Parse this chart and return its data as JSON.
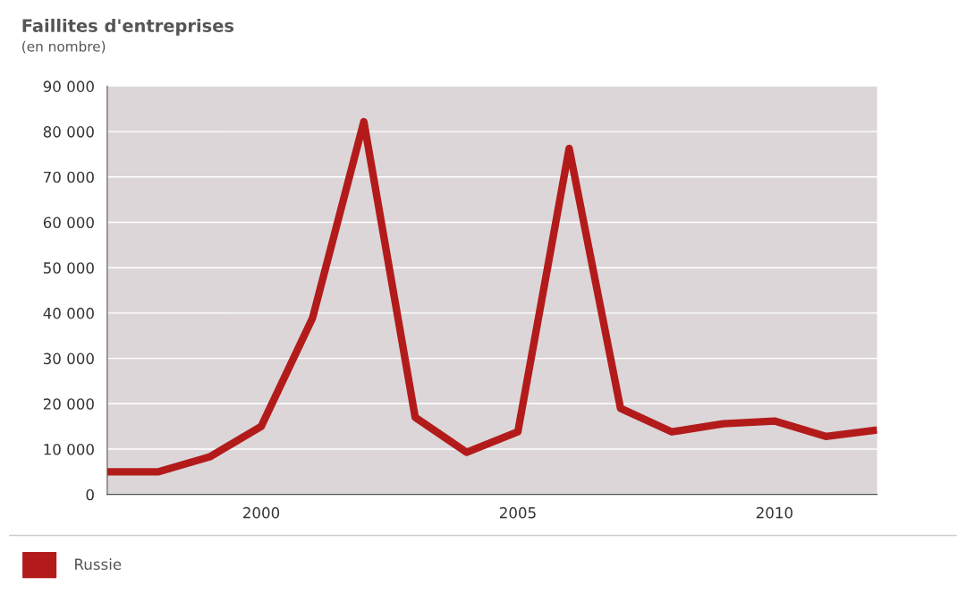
{
  "chart_data": {
    "type": "line",
    "title": "Faillites d'entreprises",
    "subtitle": "(en nombre)",
    "x": [
      1997,
      1998,
      1999,
      2000,
      2001,
      2002,
      2003,
      2004,
      2005,
      2006,
      2007,
      2008,
      2009,
      2010,
      2011,
      2012
    ],
    "series": [
      {
        "name": "Russie",
        "color": "#b31b1b",
        "values": [
          5000,
          5000,
          8300,
          15000,
          38900,
          82200,
          17000,
          9300,
          13800,
          76300,
          19000,
          13800,
          15600,
          16200,
          12800,
          14200
        ]
      }
    ],
    "xlim": [
      1997,
      2012
    ],
    "xticks": [
      2000,
      2005,
      2010
    ],
    "ylim": [
      0,
      90000
    ],
    "yticks": [
      0,
      {
        "value": 10000,
        "label": "10 000"
      },
      {
        "value": 20000,
        "label": "20 000"
      },
      {
        "value": 30000,
        "label": "30 000"
      },
      {
        "value": 40000,
        "label": "40 000"
      },
      {
        "value": 50000,
        "label": "50 000"
      },
      {
        "value": 60000,
        "label": "60 000"
      },
      {
        "value": 70000,
        "label": "70 000"
      },
      {
        "value": 80000,
        "label": "80 000"
      },
      {
        "value": 90000,
        "label": "90 000"
      }
    ],
    "grid": "y",
    "legend": "bottom",
    "marker": "none",
    "line_style": "solid"
  }
}
